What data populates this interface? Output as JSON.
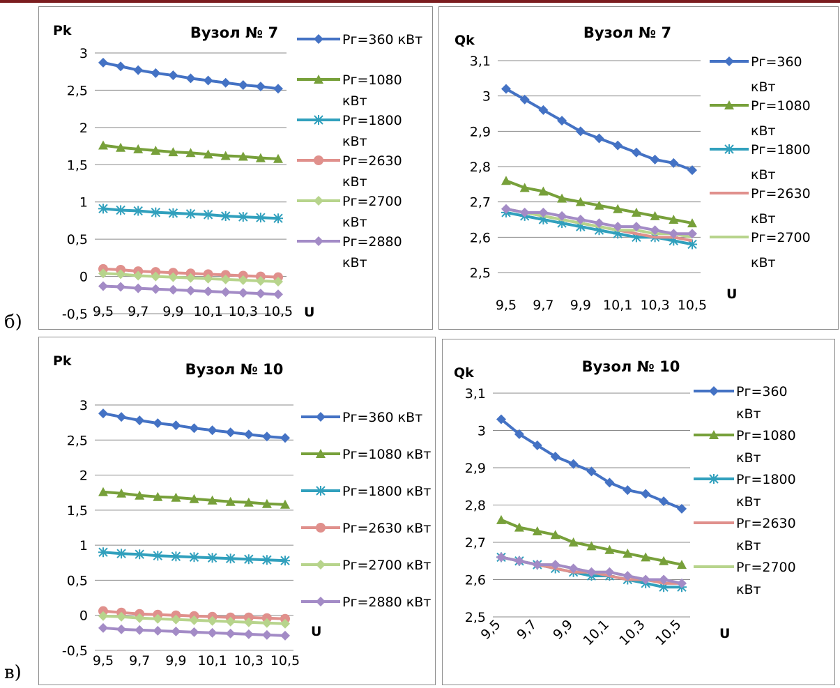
{
  "labels": {
    "b": "б)",
    "v": "в)"
  },
  "chart_data": [
    {
      "type": "line",
      "title": "Вузол № 7",
      "ylabel": "Pk",
      "xlabel": "U",
      "ylim": [
        -0.5,
        3
      ],
      "yticks": [
        "-0,5",
        "0",
        "0,5",
        "1",
        "1,5",
        "2",
        "2,5",
        "3"
      ],
      "xtick_labels": [
        "9,5",
        "9,7",
        "9,9",
        "10,1",
        "10,3",
        "10,5"
      ],
      "x": [
        9.5,
        9.6,
        9.7,
        9.8,
        9.9,
        10.0,
        10.1,
        10.2,
        10.3,
        10.4,
        10.5
      ],
      "legend_position": "right",
      "series": [
        {
          "name": "Pг=360 кВт",
          "color": "#4472c4",
          "marker": "diamond",
          "values": [
            2.87,
            2.82,
            2.77,
            2.73,
            2.7,
            2.66,
            2.63,
            2.6,
            2.57,
            2.55,
            2.52
          ]
        },
        {
          "name": "Pг=1080 кВт",
          "color": "#77a03a",
          "marker": "triangle",
          "values": [
            1.76,
            1.73,
            1.71,
            1.69,
            1.67,
            1.66,
            1.64,
            1.62,
            1.61,
            1.59,
            1.58
          ]
        },
        {
          "name": "Pг=1800 кВт",
          "color": "#31a0bd",
          "marker": "star",
          "values": [
            0.91,
            0.89,
            0.88,
            0.86,
            0.85,
            0.84,
            0.83,
            0.81,
            0.8,
            0.79,
            0.78
          ]
        },
        {
          "name": "Pг=2630 кВт",
          "color": "#e0908c",
          "marker": "circle",
          "values": [
            0.1,
            0.09,
            0.07,
            0.06,
            0.05,
            0.04,
            0.03,
            0.02,
            0.01,
            0.0,
            -0.01
          ]
        },
        {
          "name": "Pг=2700 кВт",
          "color": "#b7d48c",
          "marker": "diamond",
          "values": [
            0.04,
            0.03,
            0.01,
            0.0,
            -0.01,
            -0.02,
            -0.03,
            -0.04,
            -0.05,
            -0.06,
            -0.07
          ]
        },
        {
          "name": "Pг=2880 кВт",
          "color": "#a38bc6",
          "marker": "diamond",
          "values": [
            -0.13,
            -0.14,
            -0.16,
            -0.17,
            -0.18,
            -0.19,
            -0.2,
            -0.21,
            -0.22,
            -0.23,
            -0.24
          ]
        }
      ]
    },
    {
      "type": "line",
      "title": "Вузол № 7",
      "ylabel": "Qk",
      "xlabel": "U",
      "ylim": [
        2.5,
        3.1
      ],
      "yticks": [
        "2,5",
        "2,6",
        "2,7",
        "2,8",
        "2,9",
        "3",
        "3,1"
      ],
      "xtick_labels": [
        "9,5",
        "9,7",
        "9,9",
        "10,1",
        "10,3",
        "10,5"
      ],
      "x": [
        9.5,
        9.6,
        9.7,
        9.8,
        9.9,
        10.0,
        10.1,
        10.2,
        10.3,
        10.4,
        10.5
      ],
      "legend_position": "right",
      "series": [
        {
          "name": "Pг=360 кВт",
          "color": "#4472c4",
          "marker": "diamond",
          "values": [
            3.02,
            2.99,
            2.96,
            2.93,
            2.9,
            2.88,
            2.86,
            2.84,
            2.82,
            2.81,
            2.79
          ]
        },
        {
          "name": "Pг=1080 кВт",
          "color": "#77a03a",
          "marker": "triangle",
          "values": [
            2.76,
            2.74,
            2.73,
            2.71,
            2.7,
            2.69,
            2.68,
            2.67,
            2.66,
            2.65,
            2.64
          ]
        },
        {
          "name": "Pг=1800 кВт",
          "color": "#31a0bd",
          "marker": "star",
          "values": [
            2.67,
            2.66,
            2.65,
            2.64,
            2.63,
            2.62,
            2.61,
            2.6,
            2.6,
            2.59,
            2.58
          ]
        },
        {
          "name": "Pг=2630 кВт",
          "color": "#e0908c",
          "marker": "none",
          "values": [
            2.68,
            2.67,
            2.66,
            2.65,
            2.64,
            2.63,
            2.62,
            2.61,
            2.6,
            2.6,
            2.59
          ]
        },
        {
          "name": "Pг=2700 кВт",
          "color": "#b7d48c",
          "marker": "none",
          "values": [
            2.68,
            2.67,
            2.66,
            2.65,
            2.64,
            2.63,
            2.62,
            2.62,
            2.61,
            2.61,
            2.6
          ]
        },
        {
          "name": "",
          "color": "#a38bc6",
          "marker": "diamond",
          "values": [
            2.68,
            2.67,
            2.67,
            2.66,
            2.65,
            2.64,
            2.63,
            2.63,
            2.62,
            2.61,
            2.61
          ]
        }
      ]
    },
    {
      "type": "line",
      "title": "Вузол № 10",
      "ylabel": "Pk",
      "xlabel": "U",
      "ylim": [
        -0.5,
        3
      ],
      "yticks": [
        "-0,5",
        "0",
        "0,5",
        "1",
        "1,5",
        "2",
        "2,5",
        "3"
      ],
      "xtick_labels": [
        "9,5",
        "9,7",
        "9,9",
        "10,1",
        "10,3",
        "10,5"
      ],
      "x": [
        9.5,
        9.6,
        9.7,
        9.8,
        9.9,
        10.0,
        10.1,
        10.2,
        10.3,
        10.4,
        10.5
      ],
      "legend_position": "right",
      "series": [
        {
          "name": "Pг=360 кВт",
          "color": "#4472c4",
          "marker": "diamond",
          "values": [
            2.88,
            2.83,
            2.78,
            2.74,
            2.71,
            2.67,
            2.64,
            2.61,
            2.58,
            2.55,
            2.53
          ]
        },
        {
          "name": "Pг=1080 кВт",
          "color": "#77a03a",
          "marker": "triangle",
          "values": [
            1.76,
            1.74,
            1.71,
            1.69,
            1.68,
            1.66,
            1.64,
            1.62,
            1.61,
            1.59,
            1.58
          ]
        },
        {
          "name": "Pг=1800 кВт",
          "color": "#31a0bd",
          "marker": "star",
          "values": [
            0.9,
            0.88,
            0.87,
            0.85,
            0.84,
            0.83,
            0.82,
            0.81,
            0.8,
            0.79,
            0.78
          ]
        },
        {
          "name": "Pг=2630 кВт",
          "color": "#e0908c",
          "marker": "circle",
          "values": [
            0.06,
            0.04,
            0.02,
            0.01,
            0.0,
            -0.01,
            -0.02,
            -0.03,
            -0.03,
            -0.04,
            -0.05
          ]
        },
        {
          "name": "Pг=2700 кВт",
          "color": "#b7d48c",
          "marker": "diamond",
          "values": [
            -0.01,
            -0.02,
            -0.04,
            -0.05,
            -0.06,
            -0.07,
            -0.08,
            -0.09,
            -0.1,
            -0.11,
            -0.12
          ]
        },
        {
          "name": "Pг=2880 кВт",
          "color": "#a38bc6",
          "marker": "diamond",
          "values": [
            -0.18,
            -0.2,
            -0.21,
            -0.22,
            -0.23,
            -0.24,
            -0.25,
            -0.26,
            -0.27,
            -0.28,
            -0.29
          ]
        }
      ]
    },
    {
      "type": "line",
      "title": "Вузол № 10",
      "ylabel": "Qk",
      "xlabel": "U",
      "ylim": [
        2.5,
        3.1
      ],
      "yticks": [
        "2,5",
        "2,6",
        "2,7",
        "2,8",
        "2,9",
        "3",
        "3,1"
      ],
      "xtick_labels": [
        "9,5",
        "9,7",
        "9,9",
        "10,1",
        "10,3",
        "10,5"
      ],
      "xtick_rotated": true,
      "x": [
        9.5,
        9.6,
        9.7,
        9.8,
        9.9,
        10.0,
        10.1,
        10.2,
        10.3,
        10.4,
        10.5
      ],
      "legend_position": "right",
      "series": [
        {
          "name": "Pг=360 кВт",
          "color": "#4472c4",
          "marker": "diamond",
          "values": [
            3.03,
            2.99,
            2.96,
            2.93,
            2.91,
            2.89,
            2.86,
            2.84,
            2.83,
            2.81,
            2.79
          ]
        },
        {
          "name": "Pг=1080 кВт",
          "color": "#77a03a",
          "marker": "triangle",
          "values": [
            2.76,
            2.74,
            2.73,
            2.72,
            2.7,
            2.69,
            2.68,
            2.67,
            2.66,
            2.65,
            2.64
          ]
        },
        {
          "name": "Pг=1800 кВт",
          "color": "#31a0bd",
          "marker": "star",
          "values": [
            2.66,
            2.65,
            2.64,
            2.63,
            2.62,
            2.61,
            2.61,
            2.6,
            2.59,
            2.58,
            2.58
          ]
        },
        {
          "name": "Pг=2630 кВт",
          "color": "#e0908c",
          "marker": "none",
          "values": [
            2.66,
            2.65,
            2.64,
            2.63,
            2.62,
            2.62,
            2.61,
            2.6,
            2.6,
            2.59,
            2.59
          ]
        },
        {
          "name": "Pг=2700 кВт",
          "color": "#b7d48c",
          "marker": "none",
          "values": [
            2.66,
            2.65,
            2.64,
            2.64,
            2.63,
            2.62,
            2.62,
            2.61,
            2.6,
            2.6,
            2.59
          ]
        },
        {
          "name": "",
          "color": "#a38bc6",
          "marker": "diamond",
          "values": [
            2.66,
            2.65,
            2.64,
            2.64,
            2.63,
            2.62,
            2.62,
            2.61,
            2.6,
            2.6,
            2.59
          ]
        }
      ]
    }
  ]
}
